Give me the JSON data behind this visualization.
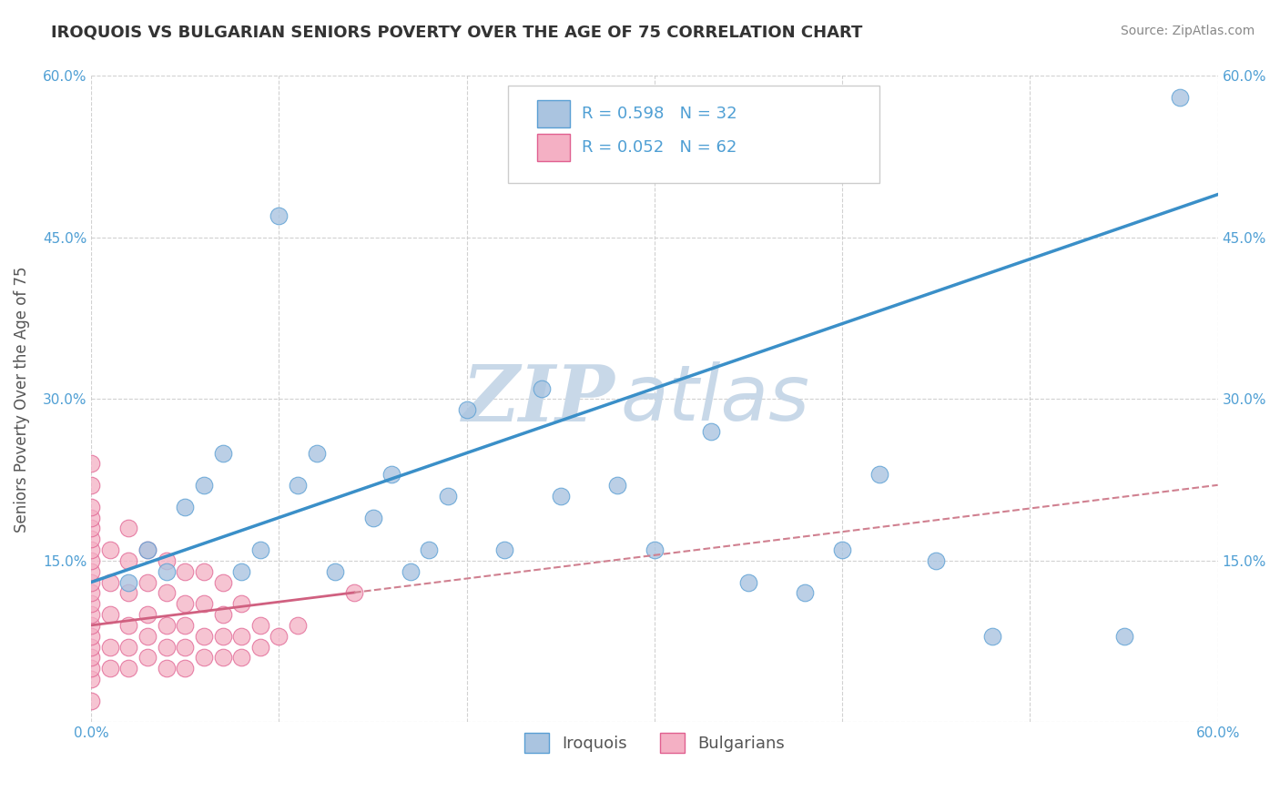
{
  "title": "IROQUOIS VS BULGARIAN SENIORS POVERTY OVER THE AGE OF 75 CORRELATION CHART",
  "source_text": "Source: ZipAtlas.com",
  "ylabel": "Seniors Poverty Over the Age of 75",
  "watermark_zip": "ZIP",
  "watermark_atlas": "atlas",
  "xlim": [
    0.0,
    0.6
  ],
  "ylim": [
    0.0,
    0.6
  ],
  "xticks": [
    0.0,
    0.1,
    0.2,
    0.3,
    0.4,
    0.5,
    0.6
  ],
  "yticks": [
    0.0,
    0.15,
    0.3,
    0.45,
    0.6
  ],
  "iroquois_color": "#aac4e0",
  "iroquois_edge": "#5a9fd4",
  "bulgarians_color": "#f4b0c4",
  "bulgarians_edge": "#e06090",
  "line_iroquois_color": "#3a8fc8",
  "line_bulgarians_color": "#d06080",
  "line_bulgarians_dashed_color": "#d08090",
  "R_iroquois": 0.598,
  "N_iroquois": 32,
  "R_bulgarians": 0.052,
  "N_bulgarians": 62,
  "iroquois_x": [
    0.02,
    0.03,
    0.04,
    0.05,
    0.06,
    0.07,
    0.08,
    0.09,
    0.1,
    0.11,
    0.12,
    0.13,
    0.15,
    0.16,
    0.17,
    0.18,
    0.19,
    0.2,
    0.22,
    0.24,
    0.25,
    0.28,
    0.3,
    0.33,
    0.35,
    0.38,
    0.4,
    0.42,
    0.45,
    0.48,
    0.55,
    0.58
  ],
  "iroquois_y": [
    0.13,
    0.16,
    0.14,
    0.2,
    0.22,
    0.25,
    0.14,
    0.16,
    0.47,
    0.22,
    0.25,
    0.14,
    0.19,
    0.23,
    0.14,
    0.16,
    0.21,
    0.29,
    0.16,
    0.31,
    0.21,
    0.22,
    0.16,
    0.27,
    0.13,
    0.12,
    0.16,
    0.23,
    0.15,
    0.08,
    0.08,
    0.58
  ],
  "bulgarians_x": [
    0.0,
    0.0,
    0.0,
    0.0,
    0.0,
    0.0,
    0.0,
    0.0,
    0.0,
    0.0,
    0.0,
    0.0,
    0.0,
    0.0,
    0.0,
    0.0,
    0.0,
    0.0,
    0.0,
    0.0,
    0.01,
    0.01,
    0.01,
    0.01,
    0.01,
    0.02,
    0.02,
    0.02,
    0.02,
    0.02,
    0.02,
    0.03,
    0.03,
    0.03,
    0.03,
    0.03,
    0.04,
    0.04,
    0.04,
    0.04,
    0.04,
    0.05,
    0.05,
    0.05,
    0.05,
    0.05,
    0.06,
    0.06,
    0.06,
    0.06,
    0.07,
    0.07,
    0.07,
    0.07,
    0.08,
    0.08,
    0.08,
    0.09,
    0.09,
    0.1,
    0.11,
    0.14
  ],
  "bulgarians_y": [
    0.02,
    0.04,
    0.05,
    0.06,
    0.07,
    0.08,
    0.09,
    0.1,
    0.11,
    0.12,
    0.13,
    0.14,
    0.15,
    0.16,
    0.17,
    0.18,
    0.19,
    0.2,
    0.22,
    0.24,
    0.05,
    0.07,
    0.1,
    0.13,
    0.16,
    0.05,
    0.07,
    0.09,
    0.12,
    0.15,
    0.18,
    0.06,
    0.08,
    0.1,
    0.13,
    0.16,
    0.05,
    0.07,
    0.09,
    0.12,
    0.15,
    0.05,
    0.07,
    0.09,
    0.11,
    0.14,
    0.06,
    0.08,
    0.11,
    0.14,
    0.06,
    0.08,
    0.1,
    0.13,
    0.06,
    0.08,
    0.11,
    0.07,
    0.09,
    0.08,
    0.09,
    0.12
  ],
  "background_color": "#ffffff",
  "grid_color": "#cccccc",
  "title_color": "#333333",
  "axis_label_color": "#555555",
  "tick_label_color": "#4f9fd4",
  "watermark_color": "#c8d8e8",
  "title_fontsize": 13,
  "axis_label_fontsize": 12,
  "tick_fontsize": 11,
  "legend_fontsize": 13,
  "scatter_size": 180
}
